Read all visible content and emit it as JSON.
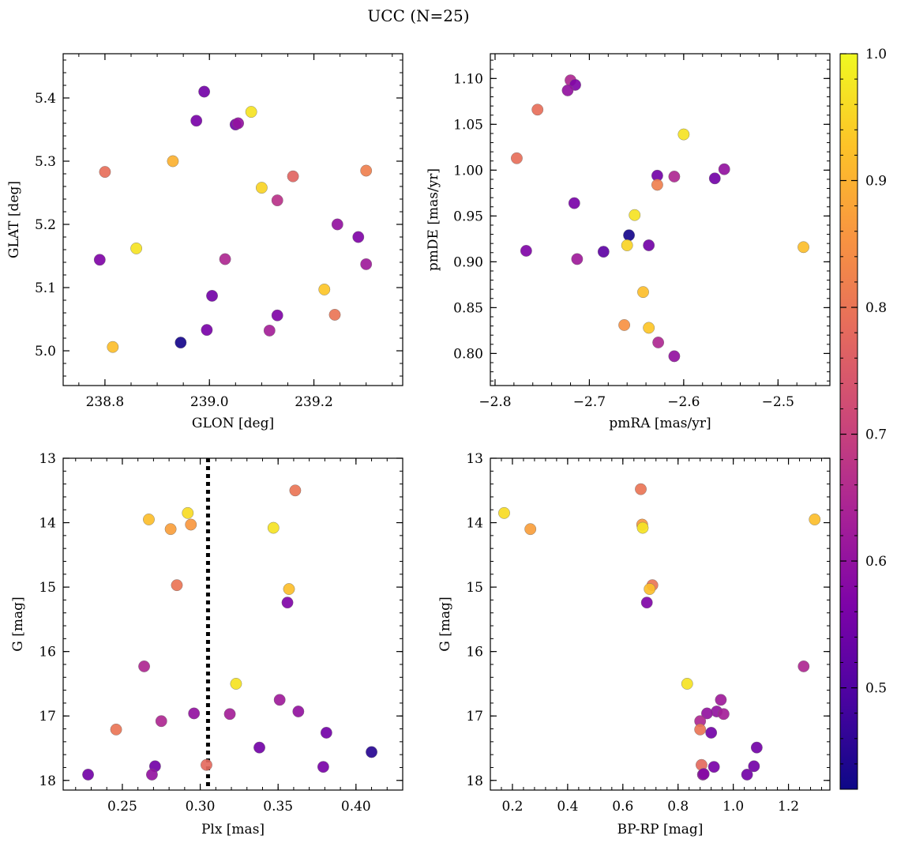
{
  "figure": {
    "title": "UCC (N=25)"
  },
  "colorbar": {
    "cmap": "plasma",
    "range": [
      0.42,
      1.0
    ],
    "ticks": [
      0.5,
      0.6,
      0.7,
      0.8,
      0.9,
      1.0
    ],
    "tick_labels": [
      "0.5",
      "0.6",
      "0.7",
      "0.8",
      "0.9",
      "1.0"
    ]
  },
  "chart_data": [
    {
      "type": "scatter",
      "xlabel": "GLON [deg]",
      "ylabel": "GLAT [deg]",
      "xlim": [
        238.72,
        239.37
      ],
      "ylim": [
        4.945,
        5.47
      ],
      "xticks": [
        238.8,
        239.0,
        239.2
      ],
      "xtick_labels": [
        "238.8",
        "239.0",
        "239.2"
      ],
      "yticks": [
        5.0,
        5.1,
        5.2,
        5.3,
        5.4
      ],
      "ytick_labels": [
        "5.0",
        "5.1",
        "5.2",
        "5.3",
        "5.4"
      ],
      "x_minor_step": 0.05,
      "y_minor_step": 0.02,
      "y_inverted": false,
      "points": [
        {
          "x": 238.99,
          "y": 5.41,
          "c": 0.55
        },
        {
          "x": 238.975,
          "y": 5.364,
          "c": 0.56
        },
        {
          "x": 239.05,
          "y": 5.358,
          "c": 0.55
        },
        {
          "x": 239.055,
          "y": 5.36,
          "c": 0.6
        },
        {
          "x": 239.08,
          "y": 5.378,
          "c": 0.97
        },
        {
          "x": 238.8,
          "y": 5.283,
          "c": 0.79
        },
        {
          "x": 238.93,
          "y": 5.3,
          "c": 0.9
        },
        {
          "x": 239.3,
          "y": 5.285,
          "c": 0.82
        },
        {
          "x": 239.1,
          "y": 5.258,
          "c": 0.95
        },
        {
          "x": 239.16,
          "y": 5.276,
          "c": 0.77
        },
        {
          "x": 239.13,
          "y": 5.238,
          "c": 0.67
        },
        {
          "x": 239.245,
          "y": 5.2,
          "c": 0.6
        },
        {
          "x": 239.285,
          "y": 5.18,
          "c": 0.57
        },
        {
          "x": 238.86,
          "y": 5.162,
          "c": 0.97
        },
        {
          "x": 238.79,
          "y": 5.144,
          "c": 0.57
        },
        {
          "x": 239.03,
          "y": 5.145,
          "c": 0.65
        },
        {
          "x": 239.3,
          "y": 5.137,
          "c": 0.62
        },
        {
          "x": 239.22,
          "y": 5.097,
          "c": 0.93
        },
        {
          "x": 239.005,
          "y": 5.087,
          "c": 0.55
        },
        {
          "x": 239.13,
          "y": 5.056,
          "c": 0.57
        },
        {
          "x": 239.24,
          "y": 5.057,
          "c": 0.8
        },
        {
          "x": 238.995,
          "y": 5.033,
          "c": 0.56
        },
        {
          "x": 239.115,
          "y": 5.032,
          "c": 0.63
        },
        {
          "x": 238.945,
          "y": 5.013,
          "c": 0.43
        },
        {
          "x": 238.815,
          "y": 5.006,
          "c": 0.92
        }
      ]
    },
    {
      "type": "scatter",
      "xlabel": "pmRA [mas/yr]",
      "ylabel": "pmDE [mas/yr]",
      "xlim": [
        -2.805,
        -2.445
      ],
      "ylim": [
        0.765,
        1.127
      ],
      "xticks": [
        -2.8,
        -2.7,
        -2.6,
        -2.5
      ],
      "xtick_labels": [
        "−2.8",
        "−2.7",
        "−2.6",
        "−2.5"
      ],
      "yticks": [
        0.8,
        0.85,
        0.9,
        0.95,
        1.0,
        1.05,
        1.1
      ],
      "ytick_labels": [
        "0.80",
        "0.85",
        "0.90",
        "0.95",
        "1.00",
        "1.05",
        "1.10"
      ],
      "x_minor_step": 0.02,
      "y_minor_step": 0.01,
      "y_inverted": false,
      "points": [
        {
          "x": -2.72,
          "y": 1.098,
          "c": 0.65
        },
        {
          "x": -2.715,
          "y": 1.093,
          "c": 0.57
        },
        {
          "x": -2.723,
          "y": 1.087,
          "c": 0.6
        },
        {
          "x": -2.755,
          "y": 1.066,
          "c": 0.79
        },
        {
          "x": -2.6,
          "y": 1.039,
          "c": 0.97
        },
        {
          "x": -2.777,
          "y": 1.013,
          "c": 0.79
        },
        {
          "x": -2.557,
          "y": 1.001,
          "c": 0.6
        },
        {
          "x": -2.628,
          "y": 0.994,
          "c": 0.55
        },
        {
          "x": -2.61,
          "y": 0.993,
          "c": 0.65
        },
        {
          "x": -2.567,
          "y": 0.991,
          "c": 0.55
        },
        {
          "x": -2.628,
          "y": 0.984,
          "c": 0.82
        },
        {
          "x": -2.716,
          "y": 0.964,
          "c": 0.56
        },
        {
          "x": -2.652,
          "y": 0.951,
          "c": 0.97
        },
        {
          "x": -2.658,
          "y": 0.929,
          "c": 0.43
        },
        {
          "x": -2.66,
          "y": 0.918,
          "c": 0.95
        },
        {
          "x": -2.637,
          "y": 0.918,
          "c": 0.55
        },
        {
          "x": -2.473,
          "y": 0.916,
          "c": 0.92
        },
        {
          "x": -2.767,
          "y": 0.912,
          "c": 0.57
        },
        {
          "x": -2.685,
          "y": 0.911,
          "c": 0.52
        },
        {
          "x": -2.713,
          "y": 0.903,
          "c": 0.62
        },
        {
          "x": -2.643,
          "y": 0.867,
          "c": 0.92
        },
        {
          "x": -2.663,
          "y": 0.831,
          "c": 0.85
        },
        {
          "x": -2.637,
          "y": 0.828,
          "c": 0.93
        },
        {
          "x": -2.627,
          "y": 0.812,
          "c": 0.65
        },
        {
          "x": -2.61,
          "y": 0.797,
          "c": 0.6
        }
      ]
    },
    {
      "type": "scatter",
      "xlabel": "Plx [mas]",
      "ylabel": "G [mag]",
      "xlim": [
        0.212,
        0.43
      ],
      "ylim": [
        18.15,
        13.0
      ],
      "xticks": [
        0.25,
        0.3,
        0.35,
        0.4
      ],
      "xtick_labels": [
        "0.25",
        "0.30",
        "0.35",
        "0.40"
      ],
      "yticks": [
        13,
        14,
        15,
        16,
        17,
        18
      ],
      "ytick_labels": [
        "13",
        "14",
        "15",
        "16",
        "17",
        "18"
      ],
      "x_minor_step": 0.01,
      "y_minor_step": 0.2,
      "y_inverted": true,
      "vline": {
        "x": 0.305,
        "style": "dotted",
        "color": "#000000"
      },
      "points": [
        {
          "x": 0.361,
          "y": 13.5,
          "c": 0.8
        },
        {
          "x": 0.292,
          "y": 13.85,
          "c": 0.96
        },
        {
          "x": 0.267,
          "y": 13.95,
          "c": 0.92
        },
        {
          "x": 0.294,
          "y": 14.03,
          "c": 0.86
        },
        {
          "x": 0.281,
          "y": 14.1,
          "c": 0.87
        },
        {
          "x": 0.347,
          "y": 14.08,
          "c": 0.97
        },
        {
          "x": 0.285,
          "y": 14.97,
          "c": 0.8
        },
        {
          "x": 0.357,
          "y": 15.03,
          "c": 0.92
        },
        {
          "x": 0.356,
          "y": 15.24,
          "c": 0.57
        },
        {
          "x": 0.264,
          "y": 16.23,
          "c": 0.65
        },
        {
          "x": 0.323,
          "y": 16.5,
          "c": 0.97
        },
        {
          "x": 0.351,
          "y": 16.75,
          "c": 0.62
        },
        {
          "x": 0.363,
          "y": 16.93,
          "c": 0.6
        },
        {
          "x": 0.296,
          "y": 16.96,
          "c": 0.6
        },
        {
          "x": 0.319,
          "y": 16.97,
          "c": 0.63
        },
        {
          "x": 0.275,
          "y": 17.08,
          "c": 0.65
        },
        {
          "x": 0.246,
          "y": 17.21,
          "c": 0.8
        },
        {
          "x": 0.381,
          "y": 17.26,
          "c": 0.55
        },
        {
          "x": 0.338,
          "y": 17.49,
          "c": 0.55
        },
        {
          "x": 0.41,
          "y": 17.56,
          "c": 0.45
        },
        {
          "x": 0.271,
          "y": 17.78,
          "c": 0.55
        },
        {
          "x": 0.304,
          "y": 17.76,
          "c": 0.78
        },
        {
          "x": 0.379,
          "y": 17.79,
          "c": 0.56
        },
        {
          "x": 0.228,
          "y": 17.91,
          "c": 0.55
        },
        {
          "x": 0.269,
          "y": 17.91,
          "c": 0.6
        }
      ]
    },
    {
      "type": "scatter",
      "xlabel": "BP-RP [mag]",
      "ylabel": "G [mag]",
      "xlim": [
        0.12,
        1.35
      ],
      "ylim": [
        18.15,
        13.0
      ],
      "xticks": [
        0.2,
        0.4,
        0.6,
        0.8,
        1.0,
        1.2
      ],
      "xtick_labels": [
        "0.2",
        "0.4",
        "0.6",
        "0.8",
        "1.0",
        "1.2"
      ],
      "yticks": [
        13,
        14,
        15,
        16,
        17,
        18
      ],
      "ytick_labels": [
        "13",
        "14",
        "15",
        "16",
        "17",
        "18"
      ],
      "x_minor_step": 0.04,
      "y_minor_step": 0.2,
      "y_inverted": true,
      "points": [
        {
          "x": 0.665,
          "y": 13.48,
          "c": 0.8
        },
        {
          "x": 0.17,
          "y": 13.85,
          "c": 0.96
        },
        {
          "x": 1.295,
          "y": 13.95,
          "c": 0.92
        },
        {
          "x": 0.67,
          "y": 14.03,
          "c": 0.86
        },
        {
          "x": 0.265,
          "y": 14.1,
          "c": 0.87
        },
        {
          "x": 0.672,
          "y": 14.08,
          "c": 0.97
        },
        {
          "x": 0.707,
          "y": 14.97,
          "c": 0.8
        },
        {
          "x": 0.697,
          "y": 15.03,
          "c": 0.92
        },
        {
          "x": 0.687,
          "y": 15.24,
          "c": 0.57
        },
        {
          "x": 1.255,
          "y": 16.23,
          "c": 0.65
        },
        {
          "x": 0.833,
          "y": 16.5,
          "c": 0.97
        },
        {
          "x": 0.955,
          "y": 16.75,
          "c": 0.62
        },
        {
          "x": 0.94,
          "y": 16.93,
          "c": 0.6
        },
        {
          "x": 0.905,
          "y": 16.96,
          "c": 0.6
        },
        {
          "x": 0.965,
          "y": 16.97,
          "c": 0.63
        },
        {
          "x": 0.88,
          "y": 17.08,
          "c": 0.65
        },
        {
          "x": 0.88,
          "y": 17.21,
          "c": 0.8
        },
        {
          "x": 0.92,
          "y": 17.26,
          "c": 0.55
        },
        {
          "x": 1.085,
          "y": 17.49,
          "c": 0.55
        },
        {
          "x": 0.885,
          "y": 17.76,
          "c": 0.78
        },
        {
          "x": 0.93,
          "y": 17.79,
          "c": 0.56
        },
        {
          "x": 1.075,
          "y": 17.78,
          "c": 0.55
        },
        {
          "x": 0.89,
          "y": 17.91,
          "c": 0.6
        },
        {
          "x": 1.05,
          "y": 17.91,
          "c": 0.55
        },
        {
          "x": 0.893,
          "y": 17.9,
          "c": 0.58
        }
      ]
    }
  ]
}
